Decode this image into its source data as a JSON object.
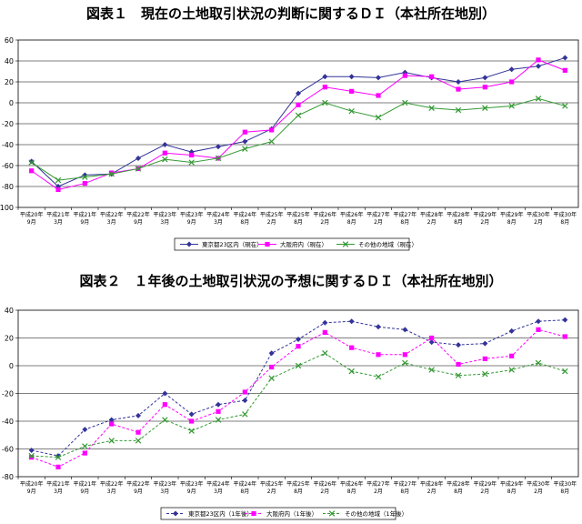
{
  "titles": {
    "chart1": "図表１　現在の土地取引状況の判断に関するＤＩ（本社所在地別）",
    "chart2": "図表２　１年後の土地取引状況の予想に関するＤＩ（本社所在地別）"
  },
  "colors": {
    "tokyo": "#333399",
    "osaka": "#ff00ff",
    "other": "#339933"
  },
  "chart_data": [
    {
      "type": "line",
      "ylim": [
        -100,
        60
      ],
      "yticks": [
        -100,
        -80,
        -60,
        -40,
        -20,
        0,
        20,
        40,
        60
      ],
      "grid": true,
      "legend_position": "bottom",
      "categories": [
        [
          "平成20年",
          "9月"
        ],
        [
          "平成21年",
          "3月"
        ],
        [
          "平成21年",
          "9月"
        ],
        [
          "平成22年",
          "3月"
        ],
        [
          "平成22年",
          "9月"
        ],
        [
          "平成23年",
          "3月"
        ],
        [
          "平成23年",
          "9月"
        ],
        [
          "平成24年",
          "3月"
        ],
        [
          "平成24年",
          "8月"
        ],
        [
          "平成25年",
          "2月"
        ],
        [
          "平成25年",
          "8月"
        ],
        [
          "平成26年",
          "2月"
        ],
        [
          "平成26年",
          "8月"
        ],
        [
          "平成27年",
          "2月"
        ],
        [
          "平成27年",
          "8月"
        ],
        [
          "平成28年",
          "2月"
        ],
        [
          "平成28年",
          "8月"
        ],
        [
          "平成29年",
          "2月"
        ],
        [
          "平成29年",
          "8月"
        ],
        [
          "平成30年",
          "2月"
        ],
        [
          "平成30年",
          "8月"
        ]
      ],
      "series": [
        {
          "name": "東京都23区内（現在）",
          "color": "#333399",
          "marker": "diamond",
          "dashed": false,
          "values": [
            -56,
            -80,
            -69,
            -68,
            -53,
            -40,
            -47,
            -42,
            -37,
            -25,
            9,
            25,
            25,
            24,
            29,
            24,
            20,
            24,
            32,
            35,
            43
          ]
        },
        {
          "name": "大阪府内（現在）",
          "color": "#ff00ff",
          "marker": "square",
          "dashed": false,
          "values": [
            -65,
            -83,
            -77,
            -67,
            -63,
            -48,
            -50,
            -53,
            -28,
            -26,
            -2,
            15,
            11,
            7,
            26,
            25,
            13,
            15,
            20,
            41,
            31
          ]
        },
        {
          "name": "その他の地域（現在）",
          "color": "#339933",
          "marker": "x",
          "dashed": false,
          "values": [
            -57,
            -74,
            -71,
            -68,
            -63,
            -54,
            -57,
            -53,
            -44,
            -37,
            -12,
            0,
            -8,
            -14,
            0,
            -5,
            -7,
            -5,
            -3,
            4,
            -3
          ]
        }
      ]
    },
    {
      "type": "line",
      "ylim": [
        -80,
        40
      ],
      "yticks": [
        -80,
        -60,
        -40,
        -20,
        0,
        20,
        40
      ],
      "grid": true,
      "legend_position": "bottom",
      "categories": [
        [
          "平成20年",
          "9月"
        ],
        [
          "平成21年",
          "3月"
        ],
        [
          "平成21年",
          "9月"
        ],
        [
          "平成22年",
          "3月"
        ],
        [
          "平成22年",
          "9月"
        ],
        [
          "平成23年",
          "3月"
        ],
        [
          "平成23年",
          "9月"
        ],
        [
          "平成24年",
          "3月"
        ],
        [
          "平成24年",
          "8月"
        ],
        [
          "平成25年",
          "2月"
        ],
        [
          "平成25年",
          "8月"
        ],
        [
          "平成26年",
          "2月"
        ],
        [
          "平成26年",
          "8月"
        ],
        [
          "平成27年",
          "2月"
        ],
        [
          "平成27年",
          "8月"
        ],
        [
          "平成28年",
          "2月"
        ],
        [
          "平成28年",
          "8月"
        ],
        [
          "平成29年",
          "2月"
        ],
        [
          "平成29年",
          "8月"
        ],
        [
          "平成30年",
          "2月"
        ],
        [
          "平成30年",
          "8月"
        ]
      ],
      "series": [
        {
          "name": "東京都23区内（1年後）",
          "color": "#333399",
          "marker": "diamond",
          "dashed": true,
          "values": [
            -61,
            -65,
            -46,
            -39,
            -36,
            -20,
            -35,
            -28,
            -25,
            9,
            19,
            31,
            32,
            28,
            26,
            17,
            15,
            16,
            25,
            32,
            33
          ]
        },
        {
          "name": "大阪府内（1年後）",
          "color": "#ff00ff",
          "marker": "square",
          "dashed": true,
          "values": [
            -66,
            -73,
            -63,
            -42,
            -48,
            -28,
            -40,
            -33,
            -19,
            -1,
            14,
            24,
            13,
            8,
            8,
            20,
            1,
            5,
            7,
            26,
            21
          ]
        },
        {
          "name": "その他の地域（1年後）",
          "color": "#339933",
          "marker": "x",
          "dashed": true,
          "values": [
            -65,
            -66,
            -58,
            -54,
            -54,
            -39,
            -47,
            -39,
            -35,
            -9,
            0,
            9,
            -4,
            -8,
            2,
            -3,
            -7,
            -6,
            -3,
            2,
            -4
          ]
        }
      ]
    }
  ]
}
